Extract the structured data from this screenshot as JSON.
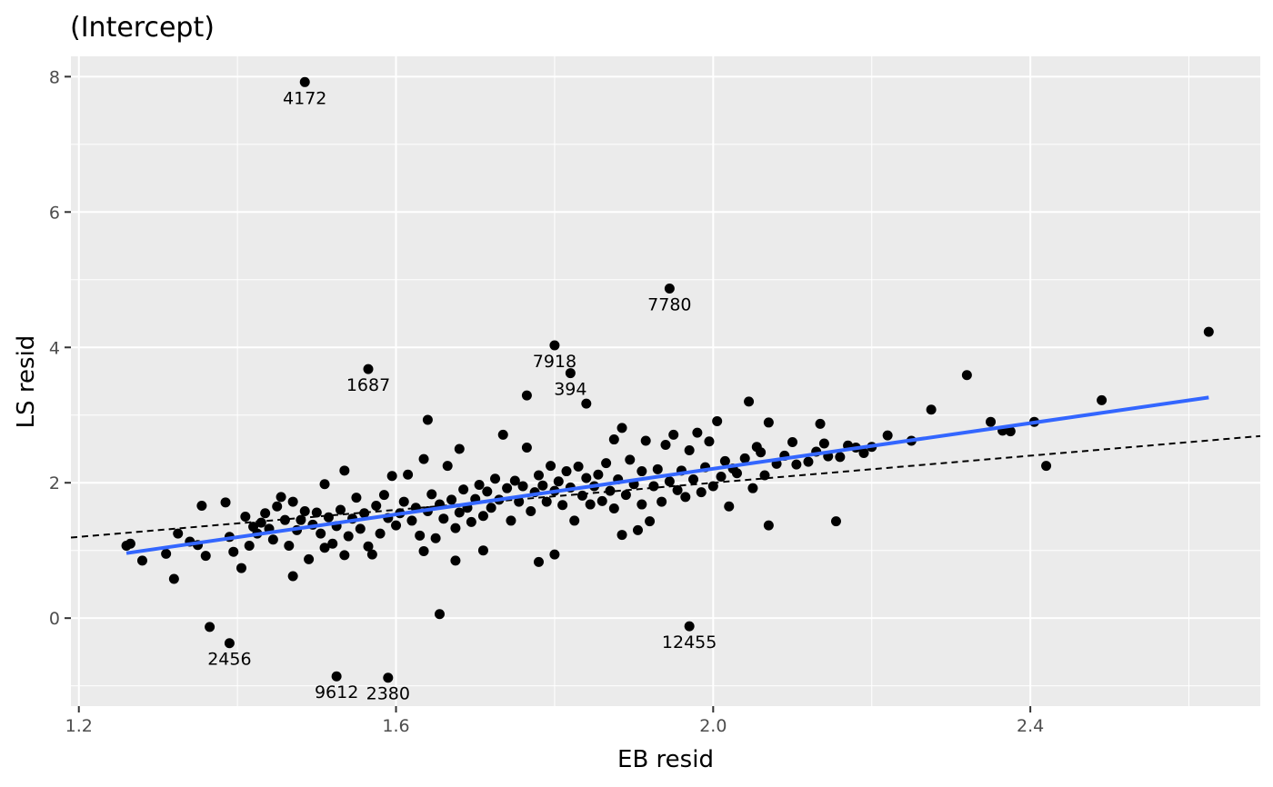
{
  "chart_data": {
    "type": "scatter",
    "title": "(Intercept)",
    "xlabel": "EB resid",
    "ylabel": "LS resid",
    "xlim": [
      1.19,
      2.69
    ],
    "ylim": [
      -1.3,
      8.3
    ],
    "x_ticks": [
      1.2,
      1.6,
      2.0,
      2.4
    ],
    "x_tick_labels": [
      "1.2",
      "1.6",
      "2.0",
      "2.4"
    ],
    "y_ticks": [
      0,
      2,
      4,
      6,
      8
    ],
    "y_tick_labels": [
      "0",
      "2",
      "4",
      "6",
      "8"
    ],
    "grid": true,
    "legend": "none",
    "colors": {
      "panel": "#ebebeb",
      "grid": "#ffffff",
      "points": "#000000",
      "fit_line": "#3366ff",
      "reference_line": "#000000"
    },
    "fit_line": {
      "x": [
        1.26,
        2.625
      ],
      "y": [
        0.96,
        3.26
      ]
    },
    "reference_line": {
      "slope": 1,
      "intercept": 0,
      "style": "dashed"
    },
    "labeled_points": [
      {
        "label": "4172",
        "x": 1.485,
        "y": 7.92
      },
      {
        "label": "7780",
        "x": 1.945,
        "y": 4.87
      },
      {
        "label": "7918",
        "x": 1.8,
        "y": 4.03
      },
      {
        "label": "394",
        "x": 1.82,
        "y": 3.62
      },
      {
        "label": "1687",
        "x": 1.565,
        "y": 3.68
      },
      {
        "label": "2456",
        "x": 1.39,
        "y": -0.37
      },
      {
        "label": "12455",
        "x": 1.97,
        "y": -0.12
      },
      {
        "label": "9612",
        "x": 1.525,
        "y": -0.86
      },
      {
        "label": "2380",
        "x": 1.59,
        "y": -0.88
      }
    ],
    "points": [
      [
        1.26,
        1.07
      ],
      [
        1.265,
        1.1
      ],
      [
        1.28,
        0.85
      ],
      [
        1.31,
        0.95
      ],
      [
        1.32,
        0.58
      ],
      [
        1.325,
        1.25
      ],
      [
        1.34,
        1.13
      ],
      [
        1.35,
        1.08
      ],
      [
        1.36,
        0.92
      ],
      [
        1.365,
        -0.13
      ],
      [
        1.355,
        1.66
      ],
      [
        1.385,
        1.71
      ],
      [
        1.39,
        1.2
      ],
      [
        1.395,
        0.98
      ],
      [
        1.405,
        0.74
      ],
      [
        1.41,
        1.5
      ],
      [
        1.415,
        1.07
      ],
      [
        1.42,
        1.35
      ],
      [
        1.425,
        1.25
      ],
      [
        1.43,
        1.41
      ],
      [
        1.435,
        1.55
      ],
      [
        1.44,
        1.32
      ],
      [
        1.445,
        1.16
      ],
      [
        1.45,
        1.65
      ],
      [
        1.455,
        1.79
      ],
      [
        1.46,
        1.45
      ],
      [
        1.465,
        1.07
      ],
      [
        1.47,
        0.62
      ],
      [
        1.47,
        1.72
      ],
      [
        1.475,
        1.3
      ],
      [
        1.48,
        1.45
      ],
      [
        1.485,
        1.58
      ],
      [
        1.49,
        0.87
      ],
      [
        1.495,
        1.38
      ],
      [
        1.5,
        1.56
      ],
      [
        1.505,
        1.25
      ],
      [
        1.51,
        1.98
      ],
      [
        1.51,
        1.04
      ],
      [
        1.515,
        1.49
      ],
      [
        1.52,
        1.1
      ],
      [
        1.525,
        1.36
      ],
      [
        1.53,
        1.6
      ],
      [
        1.535,
        0.93
      ],
      [
        1.535,
        2.18
      ],
      [
        1.54,
        1.21
      ],
      [
        1.545,
        1.47
      ],
      [
        1.55,
        1.78
      ],
      [
        1.555,
        1.32
      ],
      [
        1.56,
        1.55
      ],
      [
        1.565,
        1.06
      ],
      [
        1.57,
        0.94
      ],
      [
        1.575,
        1.66
      ],
      [
        1.58,
        1.25
      ],
      [
        1.585,
        1.82
      ],
      [
        1.59,
        1.48
      ],
      [
        1.595,
        2.1
      ],
      [
        1.6,
        1.37
      ],
      [
        1.605,
        1.55
      ],
      [
        1.61,
        1.72
      ],
      [
        1.615,
        2.12
      ],
      [
        1.62,
        1.44
      ],
      [
        1.625,
        1.63
      ],
      [
        1.63,
        1.22
      ],
      [
        1.635,
        2.35
      ],
      [
        1.635,
        0.99
      ],
      [
        1.64,
        1.58
      ],
      [
        1.64,
        2.93
      ],
      [
        1.645,
        1.83
      ],
      [
        1.65,
        1.18
      ],
      [
        1.655,
        0.06
      ],
      [
        1.655,
        1.68
      ],
      [
        1.66,
        1.47
      ],
      [
        1.665,
        2.25
      ],
      [
        1.67,
        1.75
      ],
      [
        1.675,
        0.85
      ],
      [
        1.675,
        1.33
      ],
      [
        1.68,
        1.56
      ],
      [
        1.68,
        2.5
      ],
      [
        1.685,
        1.9
      ],
      [
        1.69,
        1.63
      ],
      [
        1.695,
        1.42
      ],
      [
        1.7,
        1.76
      ],
      [
        1.705,
        1.97
      ],
      [
        1.71,
        1.51
      ],
      [
        1.71,
        1.0
      ],
      [
        1.715,
        1.87
      ],
      [
        1.72,
        1.63
      ],
      [
        1.725,
        2.06
      ],
      [
        1.73,
        1.75
      ],
      [
        1.735,
        2.71
      ],
      [
        1.74,
        1.92
      ],
      [
        1.745,
        1.44
      ],
      [
        1.75,
        2.03
      ],
      [
        1.755,
        1.72
      ],
      [
        1.76,
        1.95
      ],
      [
        1.765,
        3.29
      ],
      [
        1.765,
        2.52
      ],
      [
        1.77,
        1.58
      ],
      [
        1.775,
        1.86
      ],
      [
        1.78,
        0.83
      ],
      [
        1.78,
        2.11
      ],
      [
        1.785,
        1.96
      ],
      [
        1.79,
        1.72
      ],
      [
        1.795,
        2.25
      ],
      [
        1.8,
        0.94
      ],
      [
        1.8,
        1.88
      ],
      [
        1.805,
        2.02
      ],
      [
        1.81,
        1.67
      ],
      [
        1.815,
        2.17
      ],
      [
        1.82,
        1.93
      ],
      [
        1.825,
        1.44
      ],
      [
        1.83,
        2.24
      ],
      [
        1.835,
        1.81
      ],
      [
        1.84,
        3.17
      ],
      [
        1.84,
        2.07
      ],
      [
        1.845,
        1.68
      ],
      [
        1.85,
        1.95
      ],
      [
        1.855,
        2.12
      ],
      [
        1.86,
        1.73
      ],
      [
        1.865,
        2.29
      ],
      [
        1.87,
        1.88
      ],
      [
        1.875,
        1.62
      ],
      [
        1.875,
        2.64
      ],
      [
        1.88,
        2.05
      ],
      [
        1.885,
        1.23
      ],
      [
        1.885,
        2.81
      ],
      [
        1.89,
        1.82
      ],
      [
        1.895,
        2.34
      ],
      [
        1.9,
        1.98
      ],
      [
        1.905,
        1.3
      ],
      [
        1.91,
        2.17
      ],
      [
        1.91,
        1.68
      ],
      [
        1.915,
        2.62
      ],
      [
        1.92,
        1.43
      ],
      [
        1.925,
        1.95
      ],
      [
        1.93,
        2.2
      ],
      [
        1.935,
        1.72
      ],
      [
        1.94,
        2.56
      ],
      [
        1.945,
        2.02
      ],
      [
        1.95,
        2.71
      ],
      [
        1.955,
        1.89
      ],
      [
        1.96,
        2.18
      ],
      [
        1.965,
        1.79
      ],
      [
        1.97,
        2.48
      ],
      [
        1.975,
        2.05
      ],
      [
        1.98,
        2.74
      ],
      [
        1.985,
        1.86
      ],
      [
        1.99,
        2.23
      ],
      [
        1.995,
        2.61
      ],
      [
        2.0,
        1.95
      ],
      [
        2.005,
        2.91
      ],
      [
        2.01,
        2.09
      ],
      [
        2.015,
        2.32
      ],
      [
        2.02,
        1.65
      ],
      [
        2.025,
        2.21
      ],
      [
        2.03,
        2.14
      ],
      [
        2.04,
        2.36
      ],
      [
        2.045,
        3.2
      ],
      [
        2.05,
        1.92
      ],
      [
        2.055,
        2.53
      ],
      [
        2.06,
        2.45
      ],
      [
        2.065,
        2.11
      ],
      [
        2.07,
        1.37
      ],
      [
        2.07,
        2.89
      ],
      [
        2.08,
        2.28
      ],
      [
        2.09,
        2.4
      ],
      [
        2.1,
        2.6
      ],
      [
        2.105,
        2.27
      ],
      [
        2.12,
        2.31
      ],
      [
        2.13,
        2.46
      ],
      [
        2.135,
        2.87
      ],
      [
        2.14,
        2.58
      ],
      [
        2.145,
        2.39
      ],
      [
        2.155,
        1.43
      ],
      [
        2.16,
        2.38
      ],
      [
        2.17,
        2.55
      ],
      [
        2.18,
        2.52
      ],
      [
        2.19,
        2.44
      ],
      [
        2.2,
        2.53
      ],
      [
        2.22,
        2.7
      ],
      [
        2.25,
        2.62
      ],
      [
        2.275,
        3.08
      ],
      [
        2.32,
        3.59
      ],
      [
        2.35,
        2.9
      ],
      [
        2.365,
        2.77
      ],
      [
        2.375,
        2.76
      ],
      [
        2.405,
        2.9
      ],
      [
        2.42,
        2.25
      ],
      [
        2.49,
        3.22
      ],
      [
        2.625,
        4.23
      ],
      [
        1.485,
        7.92
      ],
      [
        1.945,
        4.87
      ],
      [
        1.8,
        4.03
      ],
      [
        1.82,
        3.62
      ],
      [
        1.565,
        3.68
      ],
      [
        1.39,
        -0.37
      ],
      [
        1.97,
        -0.12
      ],
      [
        1.525,
        -0.86
      ],
      [
        1.59,
        -0.88
      ]
    ]
  }
}
